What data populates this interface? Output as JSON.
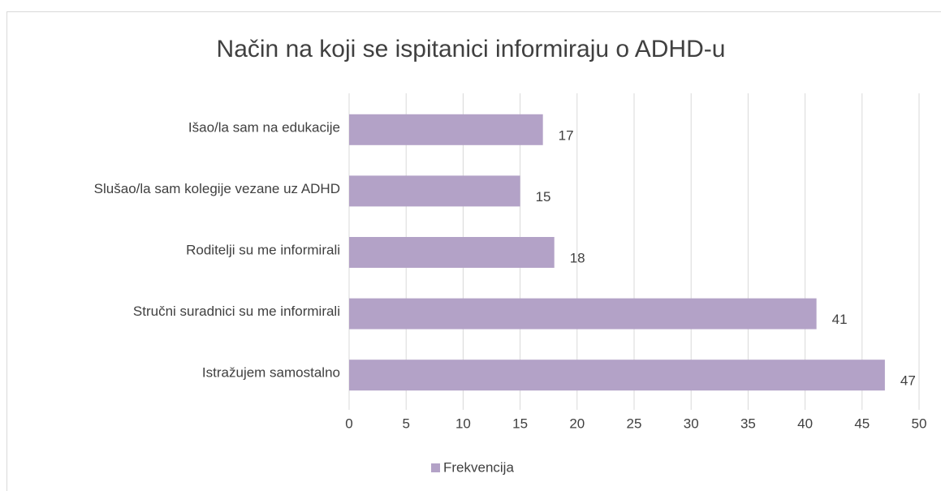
{
  "chart_data": {
    "type": "bar",
    "orientation": "horizontal",
    "title": "Način na koji se ispitanici informiraju o ADHD-u",
    "categories": [
      "Išao/la sam na edukacije",
      "Slušao/la sam kolegije vezane uz ADHD",
      "Roditelji su me informirali",
      "Stručni suradnici su me informirali",
      "Istražujem samostalno"
    ],
    "series": [
      {
        "name": "Frekvencija",
        "color": "#b3a2c7",
        "values": [
          17,
          15,
          18,
          41,
          47
        ]
      }
    ],
    "xlim": [
      0,
      50
    ],
    "xticks": [
      0,
      5,
      10,
      15,
      20,
      25,
      30,
      35,
      40,
      45,
      50
    ],
    "grid": true,
    "legend": "bottom"
  }
}
